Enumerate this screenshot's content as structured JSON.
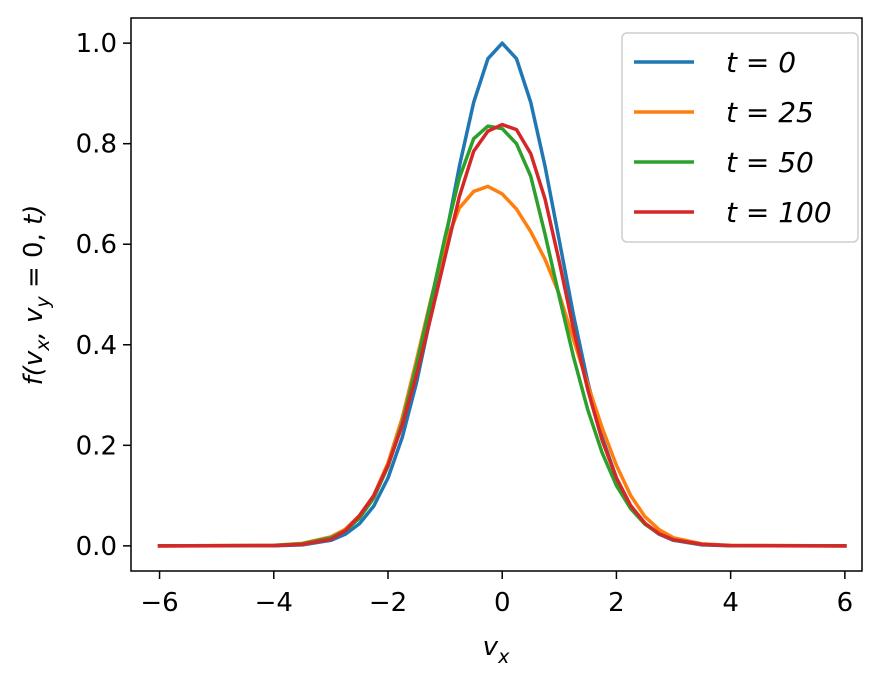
{
  "chart_data": {
    "type": "line",
    "xlabel": "v_x",
    "ylabel": "f(v_x, v_y = 0, t)",
    "xlim": [
      -6.5,
      6.3
    ],
    "ylim": [
      -0.05,
      1.05
    ],
    "xticks": [
      -6,
      -4,
      -2,
      0,
      2,
      4,
      6
    ],
    "xtick_labels": [
      "−6",
      "−4",
      "−2",
      "0",
      "2",
      "4",
      "6"
    ],
    "yticks": [
      0.0,
      0.2,
      0.4,
      0.6,
      0.8,
      1.0
    ],
    "ytick_labels": [
      "0.0",
      "0.2",
      "0.4",
      "0.6",
      "0.8",
      "1.0"
    ],
    "grid": false,
    "legend_position": "top-right",
    "x": [
      -6.0,
      -4.0,
      -3.5,
      -3.0,
      -2.75,
      -2.5,
      -2.25,
      -2.0,
      -1.75,
      -1.5,
      -1.25,
      -1.0,
      -0.75,
      -0.5,
      -0.25,
      0.0,
      0.25,
      0.5,
      0.75,
      1.0,
      1.25,
      1.5,
      1.75,
      2.0,
      2.25,
      2.5,
      2.75,
      3.0,
      3.5,
      4.0,
      6.0
    ],
    "series": [
      {
        "name": "t = 0",
        "color": "#1f77b4",
        "values": [
          0.0,
          0.0003,
          0.002,
          0.011,
          0.023,
          0.044,
          0.079,
          0.135,
          0.216,
          0.325,
          0.458,
          0.607,
          0.755,
          0.882,
          0.969,
          1.0,
          0.969,
          0.882,
          0.755,
          0.607,
          0.458,
          0.325,
          0.216,
          0.135,
          0.079,
          0.044,
          0.023,
          0.011,
          0.002,
          0.0003,
          0.0
        ]
      },
      {
        "name": "t = 25",
        "color": "#ff7f0e",
        "values": [
          0.0,
          0.001,
          0.005,
          0.018,
          0.033,
          0.06,
          0.1,
          0.165,
          0.255,
          0.37,
          0.49,
          0.6,
          0.672,
          0.705,
          0.715,
          0.7,
          0.67,
          0.625,
          0.57,
          0.5,
          0.41,
          0.32,
          0.235,
          0.16,
          0.1,
          0.058,
          0.032,
          0.016,
          0.004,
          0.001,
          0.0
        ]
      },
      {
        "name": "t = 50",
        "color": "#2ca02c",
        "values": [
          0.0,
          0.001,
          0.004,
          0.016,
          0.03,
          0.055,
          0.095,
          0.158,
          0.245,
          0.36,
          0.485,
          0.615,
          0.732,
          0.81,
          0.835,
          0.83,
          0.8,
          0.735,
          0.62,
          0.495,
          0.375,
          0.27,
          0.185,
          0.12,
          0.074,
          0.043,
          0.024,
          0.012,
          0.003,
          0.0005,
          0.0
        ]
      },
      {
        "name": "t = 100",
        "color": "#d62728",
        "values": [
          0.0,
          0.0005,
          0.003,
          0.013,
          0.03,
          0.06,
          0.1,
          0.16,
          0.24,
          0.34,
          0.455,
          0.575,
          0.695,
          0.785,
          0.825,
          0.838,
          0.828,
          0.78,
          0.69,
          0.565,
          0.43,
          0.31,
          0.21,
          0.135,
          0.08,
          0.045,
          0.024,
          0.012,
          0.003,
          0.0004,
          0.0
        ]
      }
    ]
  }
}
